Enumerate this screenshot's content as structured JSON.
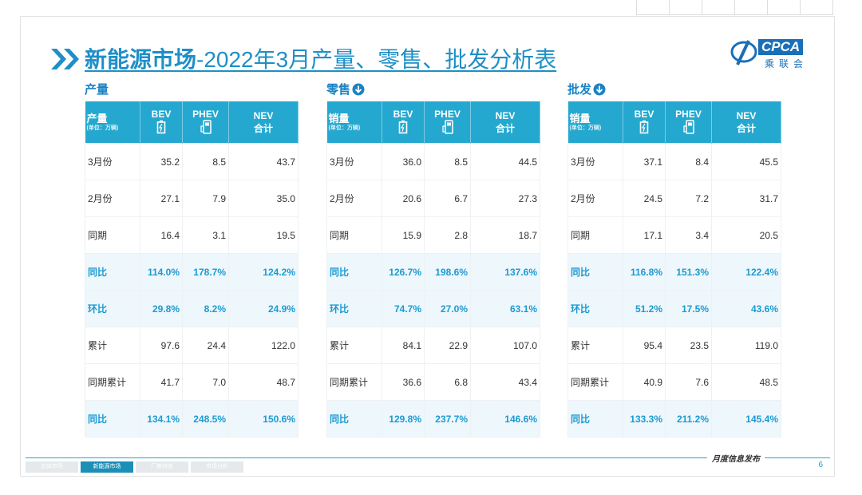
{
  "title": {
    "main": "新能源市场",
    "rest": "-2022年3月产量、零售、批发分析表"
  },
  "logo": {
    "text": "CPCA",
    "sub": "乘联会"
  },
  "tables": [
    {
      "label": "产量",
      "first_header": "产量",
      "unit": "(单位：万辆)",
      "columns": [
        "BEV",
        "PHEV",
        "NEV"
      ],
      "nev_sub": "合计",
      "rows": [
        {
          "label": "3月份",
          "values": [
            "35.2",
            "8.5",
            "43.7"
          ]
        },
        {
          "label": "2月份",
          "values": [
            "27.1",
            "7.9",
            "35.0"
          ]
        },
        {
          "label": "同期",
          "values": [
            "16.4",
            "3.1",
            "19.5"
          ]
        },
        {
          "label": "同比",
          "values": [
            "114.0%",
            "178.7%",
            "124.2%"
          ]
        },
        {
          "label": "环比",
          "values": [
            "29.8%",
            "8.2%",
            "24.9%"
          ]
        },
        {
          "label": "累计",
          "values": [
            "97.6",
            "24.4",
            "122.0"
          ]
        },
        {
          "label": "同期累计",
          "values": [
            "41.7",
            "7.0",
            "48.7"
          ]
        },
        {
          "label": "同比",
          "values": [
            "134.1%",
            "248.5%",
            "150.6%"
          ]
        }
      ]
    },
    {
      "label": "零售",
      "first_header": "销量",
      "unit": "(单位：万辆)",
      "columns": [
        "BEV",
        "PHEV",
        "NEV"
      ],
      "nev_sub": "合计",
      "rows": [
        {
          "label": "3月份",
          "values": [
            "36.0",
            "8.5",
            "44.5"
          ]
        },
        {
          "label": "2月份",
          "values": [
            "20.6",
            "6.7",
            "27.3"
          ]
        },
        {
          "label": "同期",
          "values": [
            "15.9",
            "2.8",
            "18.7"
          ]
        },
        {
          "label": "同比",
          "values": [
            "126.7%",
            "198.6%",
            "137.6%"
          ]
        },
        {
          "label": "环比",
          "values": [
            "74.7%",
            "27.0%",
            "63.1%"
          ]
        },
        {
          "label": "累计",
          "values": [
            "84.1",
            "22.9",
            "107.0"
          ]
        },
        {
          "label": "同期累计",
          "values": [
            "36.6",
            "6.8",
            "43.4"
          ]
        },
        {
          "label": "同比",
          "values": [
            "129.8%",
            "237.7%",
            "146.6%"
          ]
        }
      ]
    },
    {
      "label": "批发",
      "first_header": "销量",
      "unit": "(单位：万辆)",
      "columns": [
        "BEV",
        "PHEV",
        "NEV"
      ],
      "nev_sub": "合计",
      "rows": [
        {
          "label": "3月份",
          "values": [
            "37.1",
            "8.4",
            "45.5"
          ]
        },
        {
          "label": "2月份",
          "values": [
            "24.5",
            "7.2",
            "31.7"
          ]
        },
        {
          "label": "同期",
          "values": [
            "17.1",
            "3.4",
            "20.5"
          ]
        },
        {
          "label": "同比",
          "values": [
            "116.8%",
            "151.3%",
            "122.4%"
          ]
        },
        {
          "label": "环比",
          "values": [
            "51.2%",
            "17.5%",
            "43.6%"
          ]
        },
        {
          "label": "累计",
          "values": [
            "95.4",
            "23.5",
            "119.0"
          ]
        },
        {
          "label": "同期累计",
          "values": [
            "40.9",
            "7.6",
            "48.5"
          ]
        },
        {
          "label": "同比",
          "values": [
            "133.3%",
            "211.2%",
            "145.4%"
          ]
        }
      ]
    }
  ],
  "footer": {
    "tabs": [
      "总体市场",
      "新能源市场",
      "厂商排名",
      "市场分析"
    ],
    "active_tab": 1,
    "note": "月度信息发布",
    "page": "6"
  }
}
